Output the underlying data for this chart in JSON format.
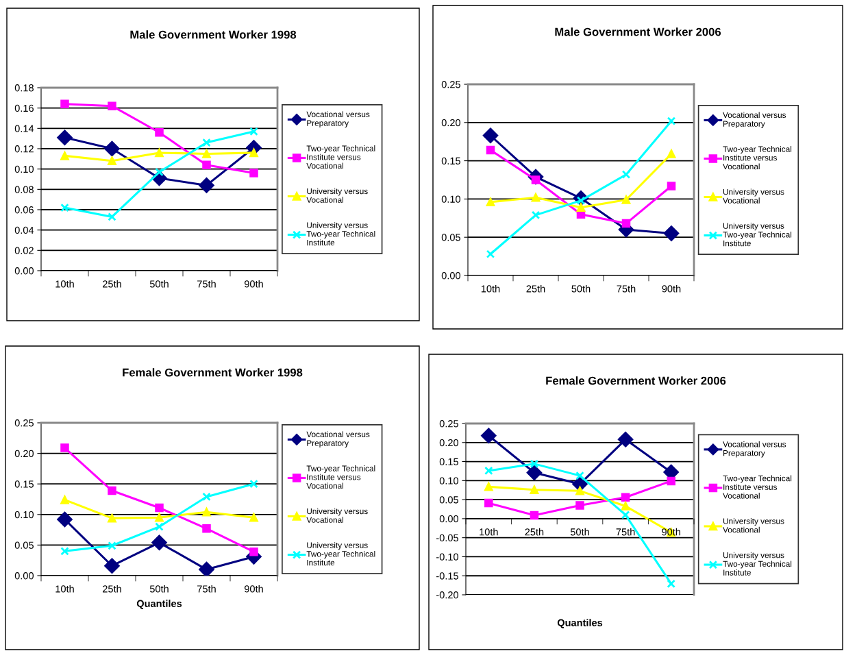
{
  "chart_data": [
    {
      "type": "line",
      "title": "Male Government Worker 1998",
      "categories": [
        "10th",
        "25th",
        "50th",
        "75th",
        "90th"
      ],
      "ylim": [
        0,
        0.18
      ],
      "yticks": [
        {
          "value": 0,
          "label": "0.00"
        },
        {
          "value": 0.02,
          "label": "0.02"
        },
        {
          "value": 0.04,
          "label": "0.04"
        },
        {
          "value": 0.06,
          "label": "0.06"
        },
        {
          "value": 0.08,
          "label": "0.08"
        },
        {
          "value": 0.1,
          "label": "0.10"
        },
        {
          "value": 0.12,
          "label": "0.12"
        },
        {
          "value": 0.14,
          "label": "0.14"
        },
        {
          "value": 0.16,
          "label": "0.16"
        },
        {
          "value": 0.18,
          "label": "0.18"
        }
      ],
      "grid": "y",
      "legend": "right",
      "series": [
        {
          "name": "Vocational versus Preparatory",
          "color": "#000080",
          "marker": "diamond",
          "values": [
            0.131,
            0.12,
            0.091,
            0.084,
            0.121
          ]
        },
        {
          "name": "Two-year Technical Institute versus Vocational",
          "color": "#ff00ff",
          "marker": "square",
          "values": [
            0.164,
            0.162,
            0.136,
            0.104,
            0.096
          ]
        },
        {
          "name": "University versus Vocational",
          "color": "#ffff00",
          "marker": "triangle",
          "values": [
            0.113,
            0.108,
            0.116,
            0.115,
            0.116
          ]
        },
        {
          "name": "University versus Two-year Technical Institute",
          "color": "#00ffff",
          "marker": "cross",
          "values": [
            0.062,
            0.053,
            0.097,
            0.126,
            0.137
          ]
        }
      ]
    },
    {
      "type": "line",
      "title": "Male Government Worker 2006",
      "categories": [
        "10th",
        "25th",
        "50th",
        "75th",
        "90th"
      ],
      "ylim": [
        0,
        0.25
      ],
      "yticks": [
        {
          "value": 0,
          "label": "0.00"
        },
        {
          "value": 0.05,
          "label": "0.05"
        },
        {
          "value": 0.1,
          "label": "0.10"
        },
        {
          "value": 0.15,
          "label": "0.15"
        },
        {
          "value": 0.2,
          "label": "0.20"
        },
        {
          "value": 0.25,
          "label": "0.25"
        }
      ],
      "grid": "y",
      "legend": "right",
      "series": [
        {
          "name": "Vocational versus Preparatory",
          "color": "#000080",
          "marker": "diamond",
          "values": [
            0.183,
            0.129,
            0.101,
            0.06,
            0.055
          ]
        },
        {
          "name": "Two-year Technical Institute versus Vocational",
          "color": "#ff00ff",
          "marker": "square",
          "values": [
            0.164,
            0.125,
            0.08,
            0.068,
            0.117
          ]
        },
        {
          "name": "University versus Vocational",
          "color": "#ffff00",
          "marker": "triangle",
          "values": [
            0.096,
            0.102,
            0.089,
            0.099,
            0.159
          ]
        },
        {
          "name": "University versus Two-year Technical Institute",
          "color": "#00ffff",
          "marker": "cross",
          "values": [
            0.028,
            0.079,
            0.098,
            0.132,
            0.202
          ]
        }
      ]
    },
    {
      "type": "line",
      "title": "Female Government Worker 1998",
      "xlabel": "Quantiles",
      "categories": [
        "10th",
        "25th",
        "50th",
        "75th",
        "90th"
      ],
      "ylim": [
        0,
        0.25
      ],
      "yticks": [
        {
          "value": 0,
          "label": "0.00"
        },
        {
          "value": 0.05,
          "label": "0.05"
        },
        {
          "value": 0.1,
          "label": "0.10"
        },
        {
          "value": 0.15,
          "label": "0.15"
        },
        {
          "value": 0.2,
          "label": "0.20"
        },
        {
          "value": 0.25,
          "label": "0.25"
        }
      ],
      "grid": "y",
      "legend": "right",
      "series": [
        {
          "name": "Vocational versus Preparatory",
          "color": "#000080",
          "marker": "diamond",
          "values": [
            0.092,
            0.016,
            0.054,
            0.01,
            0.031
          ]
        },
        {
          "name": "Two-year Technical Institute versus Vocational",
          "color": "#ff00ff",
          "marker": "square",
          "values": [
            0.209,
            0.139,
            0.111,
            0.077,
            0.039
          ]
        },
        {
          "name": "University versus Vocational",
          "color": "#ffff00",
          "marker": "triangle",
          "values": [
            0.124,
            0.094,
            0.095,
            0.104,
            0.095
          ]
        },
        {
          "name": "University versus Two-year Technical Institute",
          "color": "#00ffff",
          "marker": "cross",
          "values": [
            0.04,
            0.049,
            0.08,
            0.129,
            0.15
          ]
        }
      ]
    },
    {
      "type": "line",
      "title": "Female Government Worker 2006",
      "xlabel": "Quantiles",
      "categories": [
        "10th",
        "25th",
        "50th",
        "75th",
        "90th"
      ],
      "ylim": [
        -0.2,
        0.25
      ],
      "yticks": [
        {
          "value": -0.2,
          "label": "-0.20"
        },
        {
          "value": -0.15,
          "label": "-0.15"
        },
        {
          "value": -0.1,
          "label": "-0.10"
        },
        {
          "value": -0.05,
          "label": "-0.05"
        },
        {
          "value": 0,
          "label": "0.00"
        },
        {
          "value": 0.05,
          "label": "0.05"
        },
        {
          "value": 0.1,
          "label": "0.10"
        },
        {
          "value": 0.15,
          "label": "0.15"
        },
        {
          "value": 0.2,
          "label": "0.20"
        },
        {
          "value": 0.25,
          "label": "0.25"
        }
      ],
      "grid": "y",
      "legend": "right",
      "series": [
        {
          "name": "Vocational versus Preparatory",
          "color": "#000080",
          "marker": "diamond",
          "values": [
            0.218,
            0.121,
            0.091,
            0.208,
            0.122
          ]
        },
        {
          "name": "Two-year Technical Institute versus Vocational",
          "color": "#ff00ff",
          "marker": "square",
          "values": [
            0.041,
            0.009,
            0.035,
            0.056,
            0.099
          ]
        },
        {
          "name": "University versus Vocational",
          "color": "#ffff00",
          "marker": "triangle",
          "values": [
            0.084,
            0.076,
            0.073,
            0.033,
            -0.036
          ]
        },
        {
          "name": "University versus Two-year Technical Institute",
          "color": "#00ffff",
          "marker": "cross",
          "values": [
            0.126,
            0.144,
            0.113,
            0.01,
            -0.171
          ]
        }
      ]
    }
  ]
}
